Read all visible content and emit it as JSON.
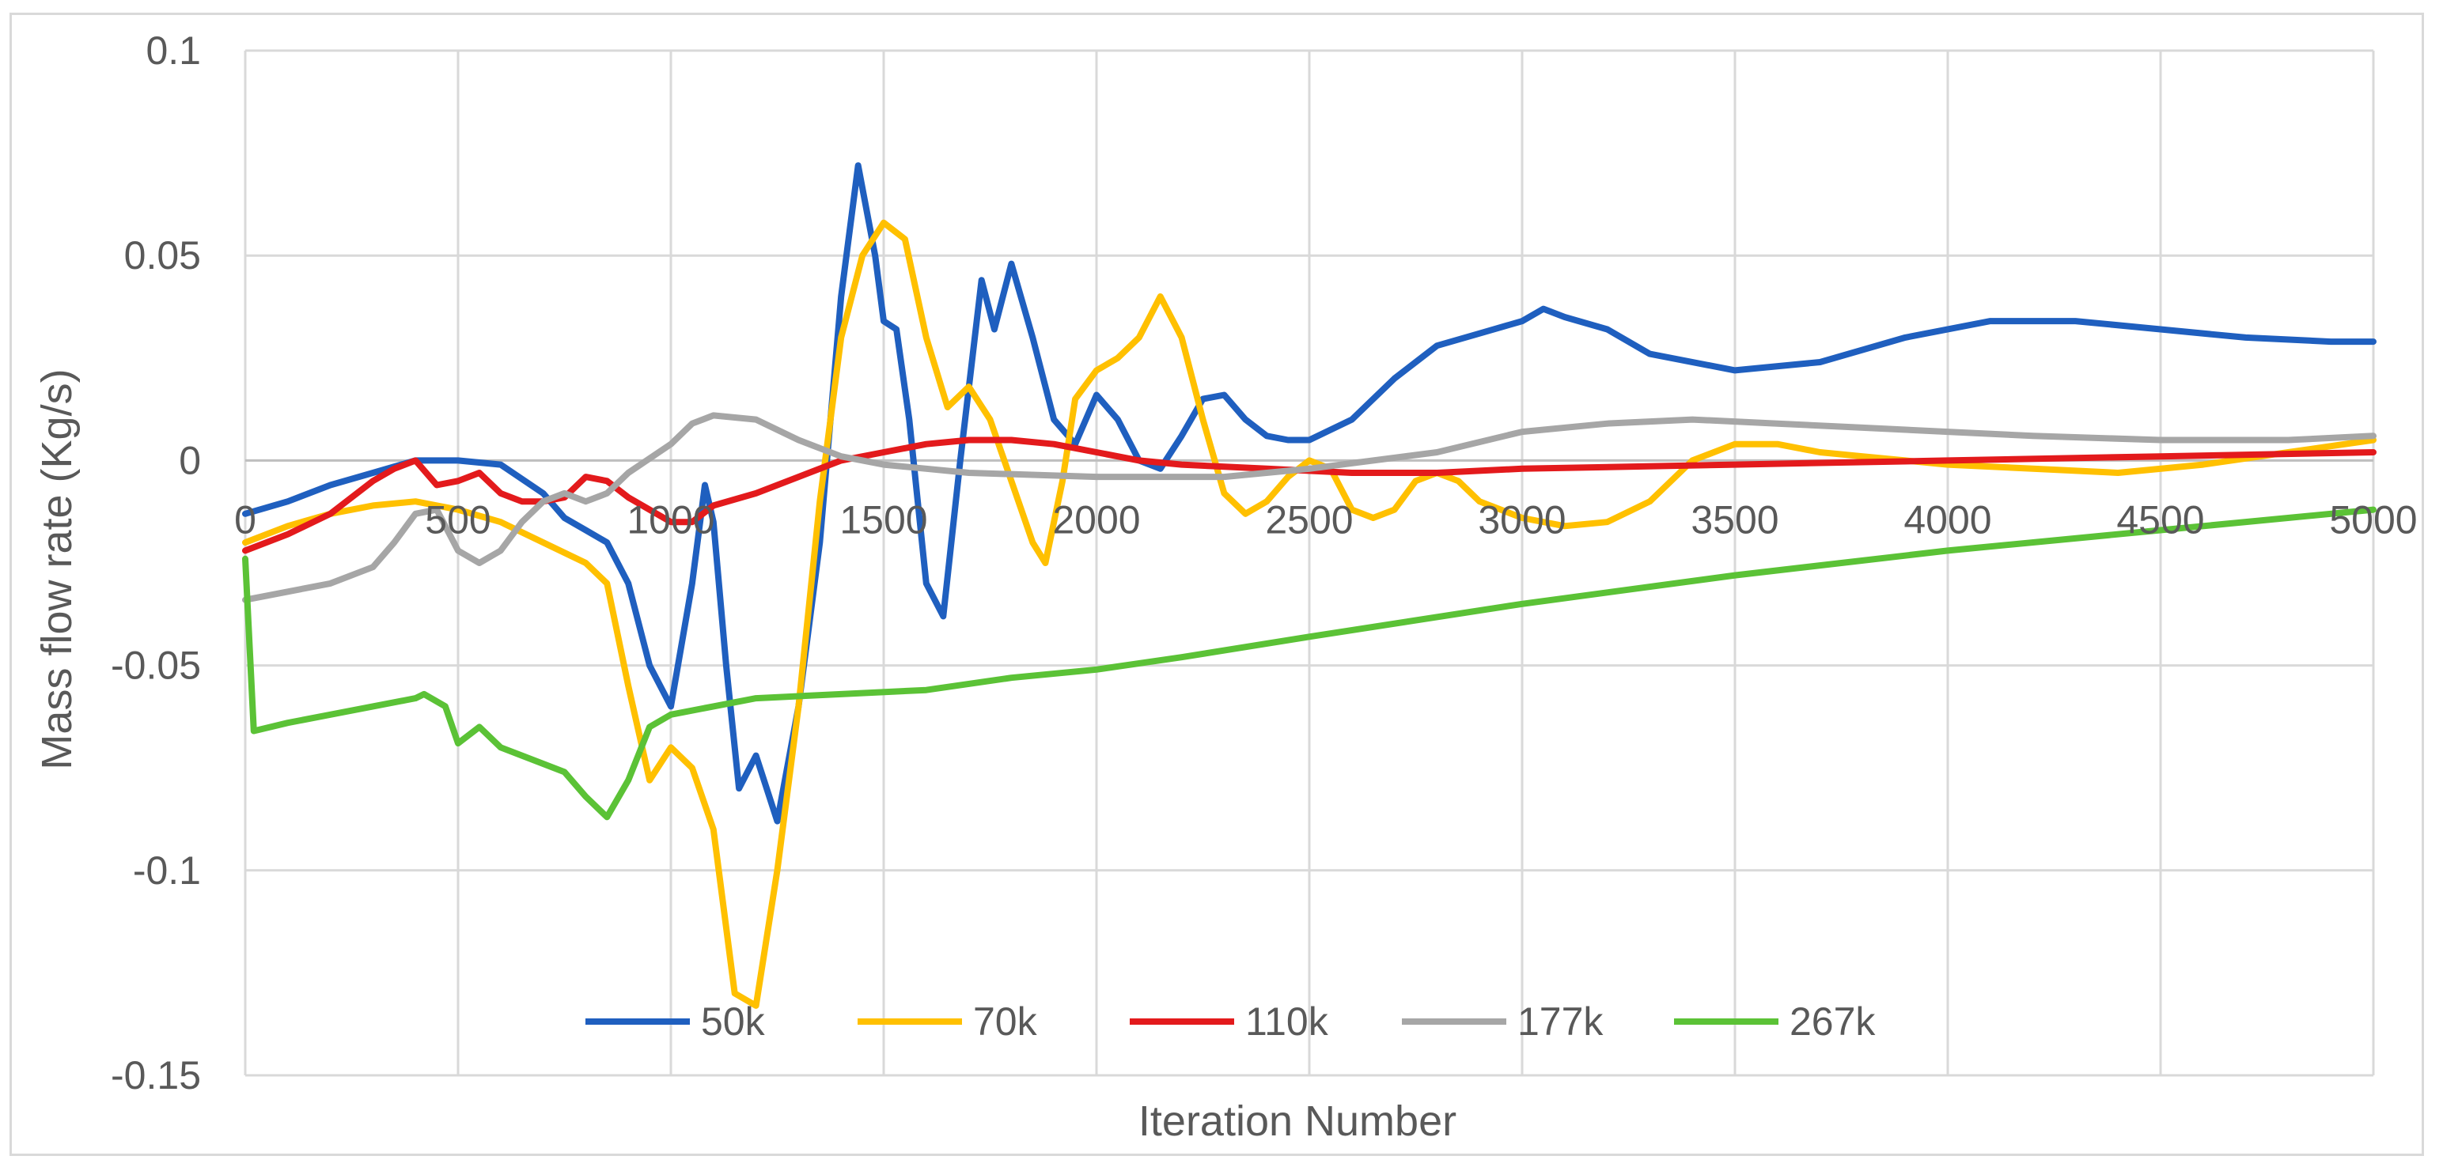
{
  "chart_data": {
    "type": "line",
    "title": "",
    "xlabel": "Iteration Number",
    "ylabel": "Mass flow rate (Kg/s)",
    "xlim": [
      0,
      5000
    ],
    "ylim": [
      -0.15,
      0.1
    ],
    "x_ticks": [
      0,
      500,
      1000,
      1500,
      2000,
      2500,
      3000,
      3500,
      4000,
      4500,
      5000
    ],
    "y_ticks": [
      0.1,
      0.05,
      0,
      -0.05,
      -0.1,
      -0.15
    ],
    "x_tick_labels": [
      "0",
      "500",
      "1000",
      "1500",
      "2000",
      "2500",
      "3000",
      "3500",
      "4000",
      "4500",
      "5000"
    ],
    "y_tick_labels": [
      "0.1",
      "0.05",
      "0",
      "-0.05",
      "-0.1",
      "-0.15"
    ],
    "grid": true,
    "legend_position": "bottom-inside",
    "series": [
      {
        "name": "50k",
        "color": "#1f5fbf",
        "points": [
          [
            0,
            -0.013
          ],
          [
            100,
            -0.01
          ],
          [
            200,
            -0.006
          ],
          [
            300,
            -0.003
          ],
          [
            400,
            0.0
          ],
          [
            450,
            0.0
          ],
          [
            500,
            0.0
          ],
          [
            600,
            -0.001
          ],
          [
            700,
            -0.008
          ],
          [
            750,
            -0.014
          ],
          [
            800,
            -0.017
          ],
          [
            850,
            -0.02
          ],
          [
            900,
            -0.03
          ],
          [
            950,
            -0.05
          ],
          [
            1000,
            -0.06
          ],
          [
            1050,
            -0.03
          ],
          [
            1080,
            -0.006
          ],
          [
            1100,
            -0.015
          ],
          [
            1130,
            -0.05
          ],
          [
            1160,
            -0.08
          ],
          [
            1200,
            -0.072
          ],
          [
            1250,
            -0.088
          ],
          [
            1300,
            -0.06
          ],
          [
            1350,
            -0.02
          ],
          [
            1400,
            0.04
          ],
          [
            1440,
            0.072
          ],
          [
            1480,
            0.05
          ],
          [
            1500,
            0.034
          ],
          [
            1530,
            0.032
          ],
          [
            1560,
            0.01
          ],
          [
            1600,
            -0.03
          ],
          [
            1640,
            -0.038
          ],
          [
            1680,
            0.0
          ],
          [
            1730,
            0.044
          ],
          [
            1760,
            0.032
          ],
          [
            1800,
            0.048
          ],
          [
            1850,
            0.03
          ],
          [
            1900,
            0.01
          ],
          [
            1950,
            0.004
          ],
          [
            2000,
            0.016
          ],
          [
            2050,
            0.01
          ],
          [
            2100,
            0.0
          ],
          [
            2150,
            -0.002
          ],
          [
            2200,
            0.006
          ],
          [
            2250,
            0.015
          ],
          [
            2300,
            0.016
          ],
          [
            2350,
            0.01
          ],
          [
            2400,
            0.006
          ],
          [
            2450,
            0.005
          ],
          [
            2500,
            0.005
          ],
          [
            2600,
            0.01
          ],
          [
            2700,
            0.02
          ],
          [
            2800,
            0.028
          ],
          [
            2900,
            0.031
          ],
          [
            3000,
            0.034
          ],
          [
            3050,
            0.037
          ],
          [
            3100,
            0.035
          ],
          [
            3200,
            0.032
          ],
          [
            3300,
            0.026
          ],
          [
            3500,
            0.022
          ],
          [
            3700,
            0.024
          ],
          [
            3900,
            0.03
          ],
          [
            4100,
            0.034
          ],
          [
            4300,
            0.034
          ],
          [
            4500,
            0.032
          ],
          [
            4700,
            0.03
          ],
          [
            4900,
            0.029
          ],
          [
            5000,
            0.029
          ]
        ]
      },
      {
        "name": "70k",
        "color": "#ffc000",
        "points": [
          [
            0,
            -0.02
          ],
          [
            100,
            -0.016
          ],
          [
            200,
            -0.013
          ],
          [
            300,
            -0.011
          ],
          [
            400,
            -0.01
          ],
          [
            500,
            -0.012
          ],
          [
            600,
            -0.015
          ],
          [
            700,
            -0.02
          ],
          [
            800,
            -0.025
          ],
          [
            850,
            -0.03
          ],
          [
            900,
            -0.055
          ],
          [
            950,
            -0.078
          ],
          [
            1000,
            -0.07
          ],
          [
            1050,
            -0.075
          ],
          [
            1100,
            -0.09
          ],
          [
            1150,
            -0.13
          ],
          [
            1200,
            -0.133
          ],
          [
            1250,
            -0.1
          ],
          [
            1300,
            -0.06
          ],
          [
            1350,
            -0.01
          ],
          [
            1400,
            0.03
          ],
          [
            1450,
            0.05
          ],
          [
            1500,
            0.058
          ],
          [
            1550,
            0.054
          ],
          [
            1600,
            0.03
          ],
          [
            1650,
            0.013
          ],
          [
            1700,
            0.018
          ],
          [
            1750,
            0.01
          ],
          [
            1800,
            -0.005
          ],
          [
            1850,
            -0.02
          ],
          [
            1880,
            -0.025
          ],
          [
            1920,
            -0.005
          ],
          [
            1950,
            0.015
          ],
          [
            2000,
            0.022
          ],
          [
            2050,
            0.025
          ],
          [
            2100,
            0.03
          ],
          [
            2150,
            0.04
          ],
          [
            2200,
            0.03
          ],
          [
            2250,
            0.01
          ],
          [
            2300,
            -0.008
          ],
          [
            2350,
            -0.013
          ],
          [
            2400,
            -0.01
          ],
          [
            2450,
            -0.004
          ],
          [
            2500,
            0.0
          ],
          [
            2550,
            -0.002
          ],
          [
            2600,
            -0.012
          ],
          [
            2650,
            -0.014
          ],
          [
            2700,
            -0.012
          ],
          [
            2750,
            -0.005
          ],
          [
            2800,
            -0.003
          ],
          [
            2850,
            -0.005
          ],
          [
            2900,
            -0.01
          ],
          [
            3000,
            -0.014
          ],
          [
            3100,
            -0.016
          ],
          [
            3200,
            -0.015
          ],
          [
            3300,
            -0.01
          ],
          [
            3400,
            0.0
          ],
          [
            3500,
            0.004
          ],
          [
            3600,
            0.004
          ],
          [
            3700,
            0.002
          ],
          [
            3800,
            0.001
          ],
          [
            3900,
            0.0
          ],
          [
            4000,
            -0.001
          ],
          [
            4200,
            -0.002
          ],
          [
            4400,
            -0.003
          ],
          [
            4600,
            -0.001
          ],
          [
            4800,
            0.002
          ],
          [
            5000,
            0.005
          ]
        ]
      },
      {
        "name": "110k",
        "color": "#e31a1c",
        "points": [
          [
            0,
            -0.022
          ],
          [
            100,
            -0.018
          ],
          [
            200,
            -0.013
          ],
          [
            300,
            -0.005
          ],
          [
            350,
            -0.002
          ],
          [
            400,
            0.0
          ],
          [
            450,
            -0.006
          ],
          [
            500,
            -0.005
          ],
          [
            550,
            -0.003
          ],
          [
            600,
            -0.008
          ],
          [
            650,
            -0.01
          ],
          [
            700,
            -0.01
          ],
          [
            750,
            -0.009
          ],
          [
            800,
            -0.004
          ],
          [
            850,
            -0.005
          ],
          [
            900,
            -0.009
          ],
          [
            950,
            -0.012
          ],
          [
            1000,
            -0.015
          ],
          [
            1050,
            -0.015
          ],
          [
            1100,
            -0.011
          ],
          [
            1200,
            -0.008
          ],
          [
            1300,
            -0.004
          ],
          [
            1400,
            0.0
          ],
          [
            1500,
            0.002
          ],
          [
            1600,
            0.004
          ],
          [
            1700,
            0.005
          ],
          [
            1800,
            0.005
          ],
          [
            1900,
            0.004
          ],
          [
            2000,
            0.002
          ],
          [
            2100,
            0.0
          ],
          [
            2200,
            -0.001
          ],
          [
            2400,
            -0.002
          ],
          [
            2600,
            -0.003
          ],
          [
            2800,
            -0.003
          ],
          [
            3000,
            -0.002
          ],
          [
            3500,
            -0.001
          ],
          [
            4000,
            0.0
          ],
          [
            4500,
            0.001
          ],
          [
            5000,
            0.002
          ]
        ]
      },
      {
        "name": "177k",
        "color": "#a6a6a6",
        "points": [
          [
            0,
            -0.034
          ],
          [
            100,
            -0.032
          ],
          [
            200,
            -0.03
          ],
          [
            300,
            -0.026
          ],
          [
            350,
            -0.02
          ],
          [
            400,
            -0.013
          ],
          [
            450,
            -0.012
          ],
          [
            500,
            -0.022
          ],
          [
            550,
            -0.025
          ],
          [
            600,
            -0.022
          ],
          [
            650,
            -0.015
          ],
          [
            700,
            -0.01
          ],
          [
            750,
            -0.008
          ],
          [
            800,
            -0.01
          ],
          [
            850,
            -0.008
          ],
          [
            900,
            -0.003
          ],
          [
            1000,
            0.004
          ],
          [
            1050,
            0.009
          ],
          [
            1100,
            0.011
          ],
          [
            1200,
            0.01
          ],
          [
            1300,
            0.005
          ],
          [
            1400,
            0.001
          ],
          [
            1500,
            -0.001
          ],
          [
            1600,
            -0.002
          ],
          [
            1700,
            -0.003
          ],
          [
            2000,
            -0.004
          ],
          [
            2300,
            -0.004
          ],
          [
            2500,
            -0.002
          ],
          [
            2800,
            0.002
          ],
          [
            3000,
            0.007
          ],
          [
            3200,
            0.009
          ],
          [
            3400,
            0.01
          ],
          [
            3600,
            0.009
          ],
          [
            3800,
            0.008
          ],
          [
            4000,
            0.007
          ],
          [
            4200,
            0.006
          ],
          [
            4500,
            0.005
          ],
          [
            4800,
            0.005
          ],
          [
            5000,
            0.006
          ]
        ]
      },
      {
        "name": "267k",
        "color": "#5bc236",
        "points": [
          [
            0,
            -0.024
          ],
          [
            20,
            -0.066
          ],
          [
            100,
            -0.064
          ],
          [
            200,
            -0.062
          ],
          [
            300,
            -0.06
          ],
          [
            400,
            -0.058
          ],
          [
            420,
            -0.057
          ],
          [
            470,
            -0.06
          ],
          [
            500,
            -0.069
          ],
          [
            550,
            -0.065
          ],
          [
            600,
            -0.07
          ],
          [
            650,
            -0.072
          ],
          [
            700,
            -0.074
          ],
          [
            750,
            -0.076
          ],
          [
            800,
            -0.082
          ],
          [
            850,
            -0.087
          ],
          [
            900,
            -0.078
          ],
          [
            950,
            -0.065
          ],
          [
            1000,
            -0.062
          ],
          [
            1100,
            -0.06
          ],
          [
            1200,
            -0.058
          ],
          [
            1400,
            -0.057
          ],
          [
            1600,
            -0.056
          ],
          [
            1800,
            -0.053
          ],
          [
            2000,
            -0.051
          ],
          [
            2200,
            -0.048
          ],
          [
            2500,
            -0.043
          ],
          [
            3000,
            -0.035
          ],
          [
            3500,
            -0.028
          ],
          [
            4000,
            -0.022
          ],
          [
            4500,
            -0.017
          ],
          [
            5000,
            -0.012
          ]
        ]
      }
    ]
  }
}
